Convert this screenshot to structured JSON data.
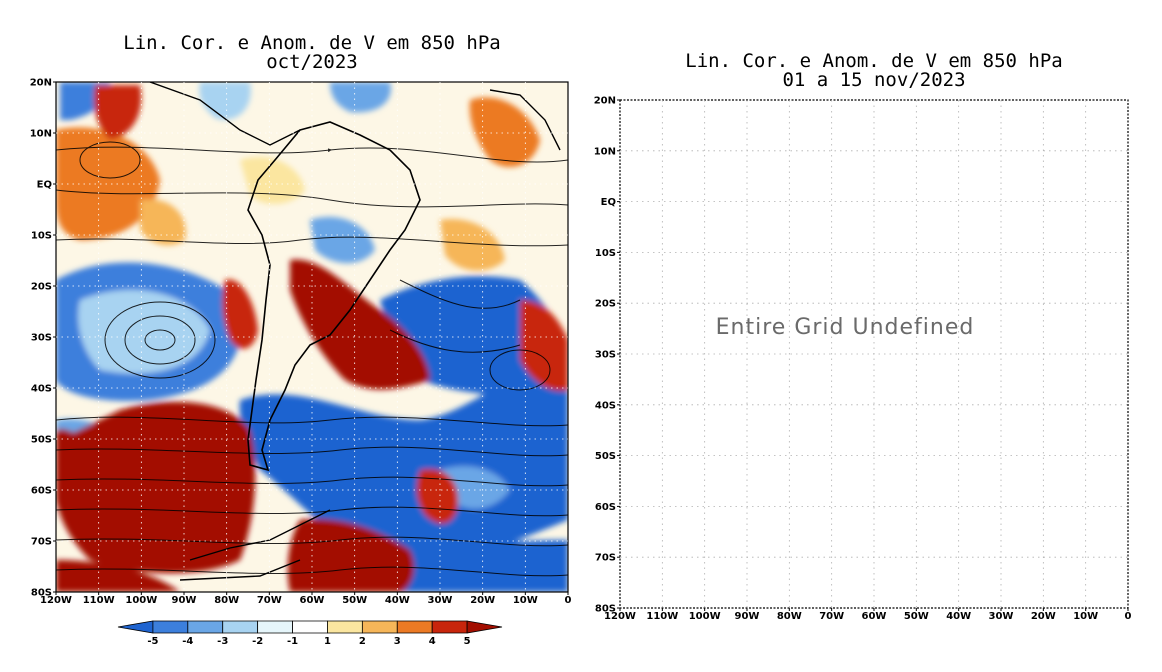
{
  "left_panel": {
    "title_line1": "Lin. Cor. e Anom. de V em 850 hPa",
    "title_line2": "oct/2023",
    "lat_labels": [
      "20N",
      "10N",
      "EQ",
      "10S",
      "20S",
      "30S",
      "40S",
      "50S",
      "60S",
      "70S",
      "80S"
    ],
    "lon_labels": [
      "120W",
      "110W",
      "100W",
      "90W",
      "80W",
      "70W",
      "60W",
      "50W",
      "40W",
      "30W",
      "20W",
      "10W",
      "0"
    ],
    "colorbar": {
      "labels": [
        "-5",
        "-4",
        "-3",
        "-2",
        "-1",
        "1",
        "2",
        "3",
        "4",
        "5"
      ],
      "colors": [
        "#1f64d0",
        "#3c7fdc",
        "#6aa6e6",
        "#a8d3f1",
        "#e6f6fb",
        "#ffffff",
        "#fbe6a0",
        "#f6b659",
        "#ec7a24",
        "#c8250c",
        "#a30e00"
      ]
    }
  },
  "right_panel": {
    "title_line1": "Lin. Cor. e Anom. de V em 850 hPa",
    "title_line2": "01 a 15 nov/2023",
    "message": "Entire Grid Undefined",
    "lat_labels": [
      "20N",
      "10N",
      "EQ",
      "10S",
      "20S",
      "30S",
      "40S",
      "50S",
      "60S",
      "70S",
      "80S"
    ],
    "lon_labels": [
      "120W",
      "110W",
      "100W",
      "90W",
      "80W",
      "70W",
      "60W",
      "50W",
      "40W",
      "30W",
      "20W",
      "10W",
      "0"
    ]
  },
  "colors": {
    "land_outline": "#000000",
    "negative_anomaly": "#1f64d0",
    "positive_anomaly": "#a30e00",
    "grid": "#b0b0b0"
  }
}
